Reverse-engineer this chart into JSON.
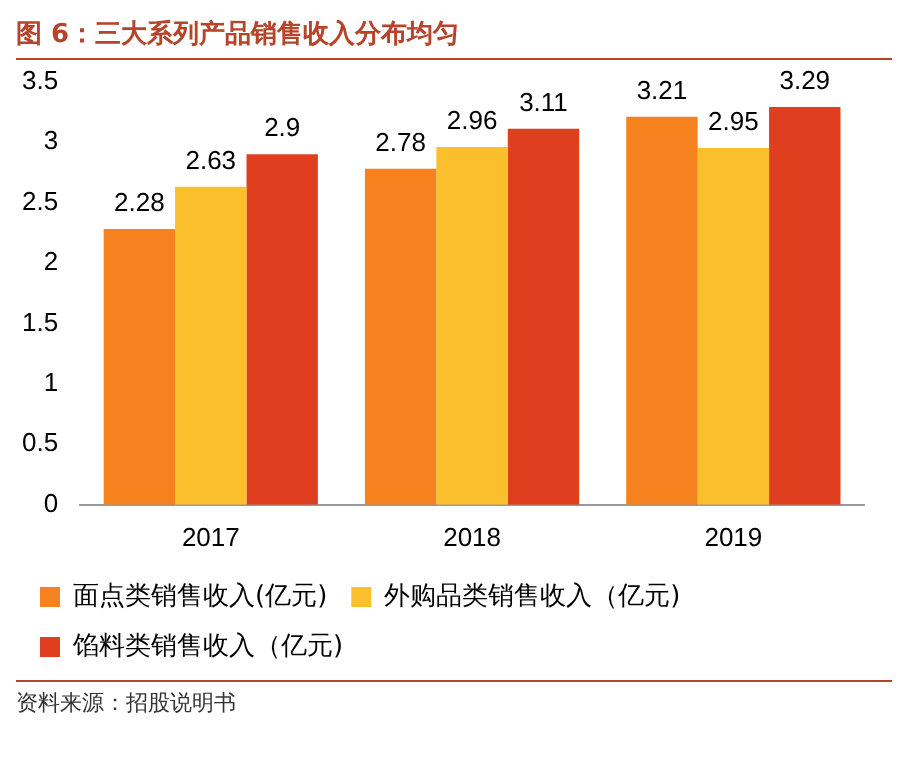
{
  "chart_data": {
    "type": "bar",
    "title": "图 6：三大系列产品销售收入分布均匀",
    "categories": [
      "2017",
      "2018",
      "2019"
    ],
    "series": [
      {
        "name": "面点类销售收入(亿元)",
        "color": "#f5821f",
        "values": [
          2.28,
          2.78,
          3.21
        ]
      },
      {
        "name": "外购品类销售收入（亿元)",
        "color": "#fbbf2d",
        "values": [
          2.63,
          2.96,
          2.95
        ]
      },
      {
        "name": "馅料类销售收入（亿元)",
        "color": "#e03f1f",
        "values": [
          2.9,
          3.11,
          3.29
        ]
      }
    ],
    "ylim": [
      0,
      3.5
    ],
    "yticks": [
      0,
      0.5,
      1,
      1.5,
      2,
      2.5,
      3,
      3.5
    ],
    "data_labels": true,
    "legend": "bottom",
    "annotations": [
      "资料来源：招股说明书"
    ]
  }
}
